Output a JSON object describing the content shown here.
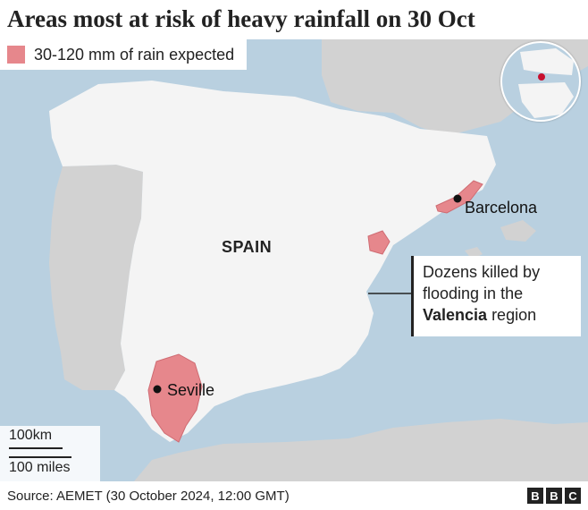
{
  "title": "Areas most at risk of heavy rainfall on 30 Oct",
  "legend": {
    "label": "30-120 mm of rain expected",
    "color": "#e6878c"
  },
  "labels": {
    "country": "SPAIN",
    "cities": [
      {
        "name": "Barcelona"
      },
      {
        "name": "Seville"
      }
    ]
  },
  "callout": {
    "line1": "Dozens killed by",
    "line2": "flooding in the",
    "highlight": "Valencia",
    "suffix": " region"
  },
  "scale": {
    "km": "100km",
    "miles": "100 miles"
  },
  "footer": {
    "source": "Source: AEMET (30 October 2024, 12:00 GMT)",
    "logo": [
      "B",
      "B",
      "C"
    ]
  },
  "colors": {
    "sea": "#b9d0e0",
    "spain": "#f4f4f4",
    "neighbour": "#d2d2d2",
    "risk": "#e6878c"
  }
}
